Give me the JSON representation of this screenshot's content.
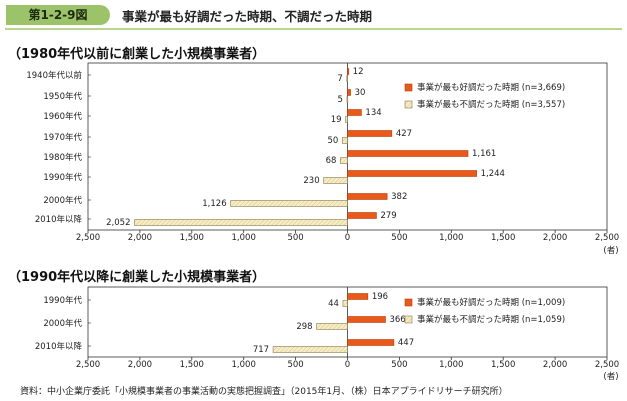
{
  "figure": {
    "badge": "第1-2-9図",
    "title": "事業が最も好調だった時期、不調だった時期"
  },
  "colors": {
    "good": "#e8591a",
    "good_stroke": "#b83e0c",
    "bad": "#f6ecc6",
    "bad_stroke": "#8a7a4a",
    "accent": "#9cc26a"
  },
  "source": "資料：中小企業庁委託「小規模事業者の事業活動の実態把握調査」（2015年1月、（株）日本アプライドリサーチ研究所）",
  "chart_data": [
    {
      "type": "bar",
      "orientation": "horizontal-diverging",
      "title": "（1980年代以前に創業した小規模事業者）",
      "categories": [
        "1940年代以前",
        "1950年代",
        "1960年代",
        "1970年代",
        "1980年代",
        "1990年代",
        "2000年代",
        "2010年以降"
      ],
      "series": [
        {
          "name": "事業が最も好調だった時期 (n=3,669)",
          "role": "good",
          "side": "right",
          "values": [
            12,
            30,
            134,
            427,
            1161,
            1244,
            382,
            279
          ],
          "labels": [
            "12",
            "30",
            "134",
            "427",
            "1,161",
            "1,244",
            "382",
            "279"
          ]
        },
        {
          "name": "事業が最も不調だった時期 (n=3,557)",
          "role": "bad",
          "side": "left",
          "values": [
            7,
            5,
            19,
            50,
            68,
            230,
            1126,
            2052
          ],
          "labels": [
            "7",
            "5",
            "19",
            "50",
            "68",
            "230",
            "1,126",
            "2,052"
          ]
        }
      ],
      "xlim": [
        -2500,
        2500
      ],
      "xticks": [
        "2,500",
        "2,000",
        "1,500",
        "1,000",
        "500",
        "0",
        "500",
        "1,000",
        "1,500",
        "2,000",
        "2,500"
      ],
      "xunit": "(者)",
      "legend_position": "right"
    },
    {
      "type": "bar",
      "orientation": "horizontal-diverging",
      "title": "（1990年代以降に創業した小規模事業者）",
      "categories": [
        "1990年代",
        "2000年代",
        "2010年以降"
      ],
      "series": [
        {
          "name": "事業が最も好調だった時期 (n=1,009)",
          "role": "good",
          "side": "right",
          "values": [
            196,
            366,
            447
          ],
          "labels": [
            "196",
            "366",
            "447"
          ]
        },
        {
          "name": "事業が最も不調だった時期 (n=1,059)",
          "role": "bad",
          "side": "left",
          "values": [
            44,
            298,
            717
          ],
          "labels": [
            "44",
            "298",
            "717"
          ]
        }
      ],
      "xlim": [
        -2500,
        2500
      ],
      "xticks": [
        "2,500",
        "2,000",
        "1,500",
        "1,000",
        "500",
        "0",
        "500",
        "1,000",
        "1,500",
        "2,000",
        "2,500"
      ],
      "xunit": "(者)",
      "legend_position": "right"
    }
  ]
}
